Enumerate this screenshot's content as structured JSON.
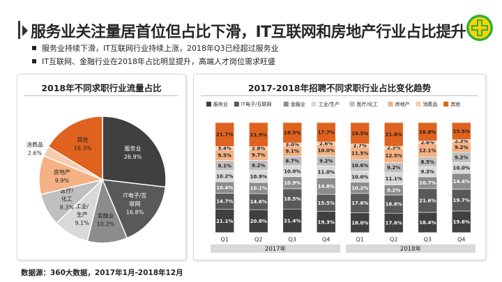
{
  "title": "服务业关注量居首位但占比下滑，IT互联网和房地产行业占比提升",
  "bullets": [
    "服务业持续下滑，IT互联网行业持续上涨，2018年Q3已经超过服务业",
    "IT互联网、金融行业在2018年占比明显提升，高端人才岗位需求旺盛"
  ],
  "source": "数据源：360大数据，2017年1月-2018年12月",
  "colors": {
    "service": "#404040",
    "it": "#595959",
    "finance": "#8c8c8c",
    "industry": "#d9d9d9",
    "medical": "#bfbfbf",
    "realestate": "#f4b183",
    "consumer": "#f8cbad",
    "other": "#e0621f",
    "logo_green": "#2eae3f",
    "logo_yellow": "#ffd200"
  },
  "chart_data": [
    {
      "type": "pie",
      "title": "2018年不同求职行业流量占比",
      "slices": [
        {
          "name": "服务业",
          "value": 26.9,
          "label": "26.9%",
          "color": "#404040",
          "text_color": "#ffffff"
        },
        {
          "name": "IT电子/互联网",
          "value": 16.8,
          "label": "16.8%",
          "color": "#595959",
          "text_color": "#ffffff"
        },
        {
          "name": "金融业",
          "value": 10.2,
          "label": "10.2%",
          "color": "#8c8c8c",
          "text_color": "#222222"
        },
        {
          "name": "工业/生产",
          "value": 9.1,
          "label": "9.1%",
          "color": "#d9d9d9",
          "text_color": "#222222"
        },
        {
          "name": "医疗/化工",
          "value": 8.3,
          "label": "8.3%",
          "color": "#bfbfbf",
          "text_color": "#222222"
        },
        {
          "name": "房地产",
          "value": 9.9,
          "label": "9.9%",
          "color": "#f4b183",
          "text_color": "#222222"
        },
        {
          "name": "消费品",
          "value": 2.6,
          "label": "2.6%",
          "color": "#f8cbad",
          "text_color": "#222222"
        },
        {
          "name": "其他",
          "value": 16.3,
          "label": "16.3%",
          "color": "#e0621f",
          "text_color": "#222222"
        }
      ]
    },
    {
      "type": "bar",
      "stacked": true,
      "percent": true,
      "title": "2017-2018年招聘不同求职行业占比变化趋势",
      "categories": [
        "Q1",
        "Q2",
        "Q3",
        "Q4",
        "Q1",
        "Q2",
        "Q3",
        "Q4"
      ],
      "groups": [
        {
          "label": "2017年",
          "categories": [
            "Q1",
            "Q2",
            "Q3",
            "Q4"
          ]
        },
        {
          "label": "2018年",
          "categories": [
            "Q1",
            "Q2",
            "Q3",
            "Q4"
          ]
        }
      ],
      "legend_position": "top",
      "series": [
        {
          "name": "服务业",
          "color": "#404040",
          "label_color": "#ffffff",
          "values": [
            21.1,
            20.8,
            21.4,
            19.3,
            18.0,
            17.6,
            18.4,
            19.6
          ]
        },
        {
          "name": "IT电子/互联网",
          "color": "#595959",
          "label_color": "#ffffff",
          "values": [
            14.7,
            14.6,
            18.5,
            15.5,
            17.6,
            16.6,
            21.6,
            19.7
          ]
        },
        {
          "name": "金融业",
          "color": "#8c8c8c",
          "label_color": "#ffffff",
          "values": [
            10.4,
            10.1,
            10.9,
            14.8,
            10.2,
            9.2,
            10.7,
            14.4
          ]
        },
        {
          "name": "工业/生产",
          "color": "#d9d9d9",
          "label_color": "#222222",
          "values": [
            10.2,
            10.9,
            10.0,
            11.0,
            10.0,
            11.1,
            9.3,
            10.0
          ]
        },
        {
          "name": "医疗/化工",
          "color": "#bfbfbf",
          "label_color": "#222222",
          "values": [
            9.1,
            9.2,
            8.7,
            9.2,
            10.6,
            9.2,
            8.5,
            9.2
          ]
        },
        {
          "name": "房地产",
          "color": "#f4b183",
          "label_color": "#222222",
          "values": [
            9.5,
            9.7,
            9.1,
            10.0,
            11.5,
            12.5,
            12.1,
            9.2
          ]
        },
        {
          "name": "消费品",
          "color": "#f8cbad",
          "label_color": "#222222",
          "values": [
            3.4,
            2.8,
            3.0,
            2.6,
            2.7,
            2.3,
            2.6,
            2.3
          ]
        },
        {
          "name": "其他",
          "color": "#e0621f",
          "label_color": "#222222",
          "values": [
            21.7,
            21.9,
            18.5,
            17.7,
            19.5,
            21.6,
            16.8,
            15.5
          ]
        }
      ],
      "legend": [
        "服务业",
        "IT电子/互联网",
        "金融业",
        "工业/生产",
        "医疗/化工",
        "房地产",
        "消费品",
        "其他"
      ]
    }
  ]
}
